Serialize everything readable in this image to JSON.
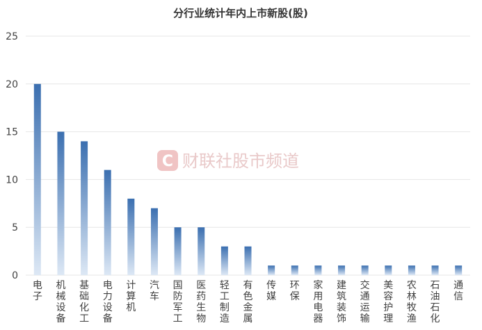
{
  "chart_data": {
    "type": "bar",
    "title": "分行业统计年内上市新股(股)",
    "xlabel": "",
    "ylabel": "",
    "ylim": [
      0,
      25
    ],
    "yticks": [
      0,
      5,
      10,
      15,
      20,
      25
    ],
    "grid": true,
    "legend": "none",
    "categories": [
      "电子",
      "机械设备",
      "基础化工",
      "电力设备",
      "计算机",
      "汽车",
      "国防军工",
      "医药生物",
      "轻工制造",
      "有色金属",
      "传媒",
      "环保",
      "家用电器",
      "建筑装饰",
      "交通运输",
      "美容护理",
      "农林牧渔",
      "石油石化",
      "通信"
    ],
    "values": [
      20,
      15,
      14,
      11,
      8,
      7,
      5,
      5,
      3,
      3,
      1,
      1,
      1,
      1,
      1,
      1,
      1,
      1,
      1
    ],
    "bar_color_top": "#3b6fb0",
    "bar_color_bottom": "#dde8f5"
  },
  "watermark": {
    "text": "财联社股市频道",
    "logo_letter": "C",
    "logo_color": "#f0c4c4"
  }
}
